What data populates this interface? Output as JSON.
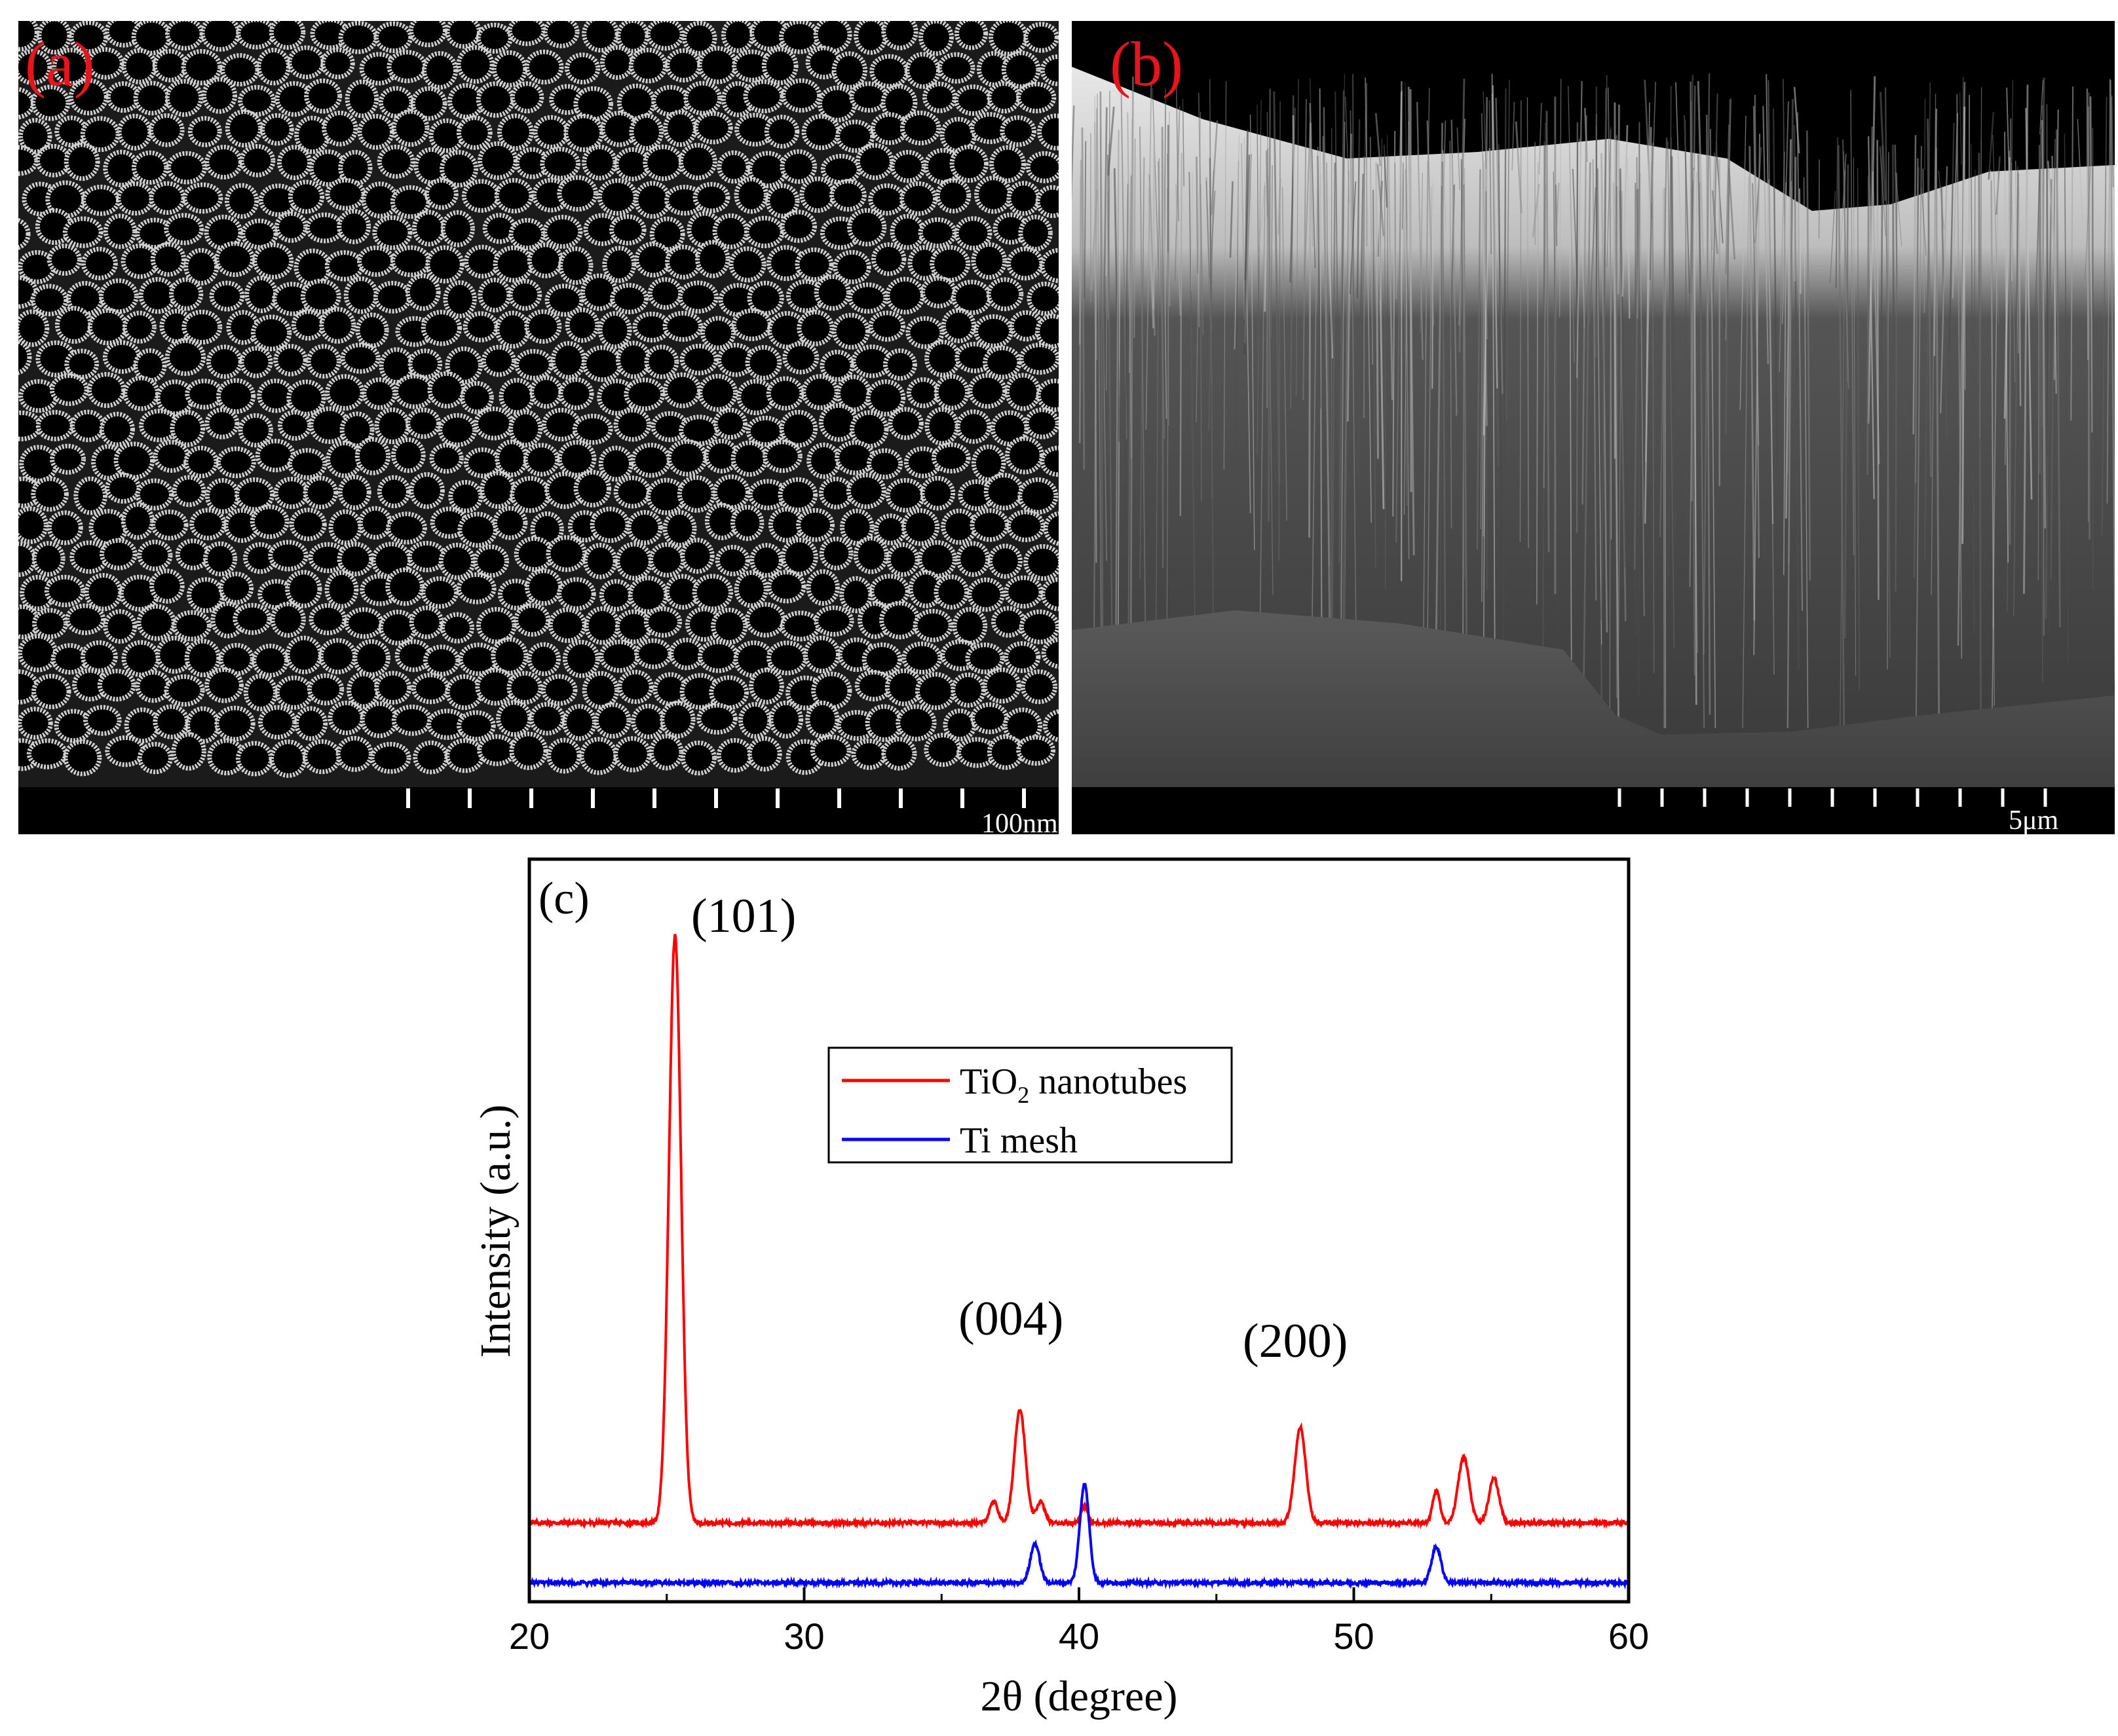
{
  "panels": {
    "a": {
      "label": "(a)",
      "scale_bar_text": "100nm",
      "image_description": "top-view SEM image of TiO2 nanotube array"
    },
    "b": {
      "label": "(b)",
      "scale_bar_text": "5μm",
      "image_description": "cross-section SEM image of TiO2 nanotube layer"
    }
  },
  "chart_data": {
    "type": "line",
    "panel_label": "(c)",
    "xlabel": "2θ (degree)",
    "ylabel": "Intensity (a.u.)",
    "xlim": [
      20,
      60
    ],
    "x_ticks": [
      20,
      30,
      40,
      50,
      60
    ],
    "y_ticks_shown": false,
    "grid": false,
    "legend_position": "upper-center",
    "legend": [
      {
        "name": "TiO2 nanotubes",
        "name_base": "TiO",
        "name_sub": "2",
        "name_rest": " nanotubes",
        "color": "#ff0000"
      },
      {
        "name": "Ti mesh",
        "color": "#0000ff"
      }
    ],
    "annotations": [
      {
        "text": "(101)",
        "x": 25.3
      },
      {
        "text": "(004)",
        "x": 37.9
      },
      {
        "text": "(200)",
        "x": 48.0
      }
    ],
    "series": [
      {
        "name": "TiO2 nanotubes",
        "color": "#ff0000",
        "baseline": 1.0,
        "peaks": [
          {
            "x": 25.3,
            "height": 9.8,
            "width": 0.22
          },
          {
            "x": 36.9,
            "height": 0.35,
            "width": 0.15
          },
          {
            "x": 37.85,
            "height": 1.9,
            "width": 0.2
          },
          {
            "x": 38.6,
            "height": 0.35,
            "width": 0.15
          },
          {
            "x": 40.2,
            "height": 0.28,
            "width": 0.12
          },
          {
            "x": 48.05,
            "height": 1.6,
            "width": 0.2
          },
          {
            "x": 53.0,
            "height": 0.55,
            "width": 0.13
          },
          {
            "x": 54.0,
            "height": 1.1,
            "width": 0.2
          },
          {
            "x": 55.1,
            "height": 0.75,
            "width": 0.18
          }
        ]
      },
      {
        "name": "Ti mesh",
        "color": "#0000ff",
        "baseline": 0.0,
        "peaks": [
          {
            "x": 38.4,
            "height": 0.65,
            "width": 0.17
          },
          {
            "x": 40.2,
            "height": 1.65,
            "width": 0.17
          },
          {
            "x": 53.0,
            "height": 0.6,
            "width": 0.17
          }
        ]
      }
    ]
  }
}
